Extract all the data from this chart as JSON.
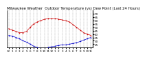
{
  "title": "Milwaukee Weather  Outdoor Temperature (vs) Dew Point (Last 24 Hours)",
  "bg_color": "#ffffff",
  "temp_color": "#cc0000",
  "dew_color": "#0000cc",
  "grid_color": "#999999",
  "ylim": [
    20,
    75
  ],
  "ytick_values": [
    25,
    30,
    35,
    40,
    45,
    50,
    55,
    60,
    65,
    70
  ],
  "ytick_labels": [
    "25",
    "30",
    "35",
    "40",
    "45",
    "50",
    "55",
    "60",
    "65",
    "70"
  ],
  "hours": [
    0,
    1,
    2,
    3,
    4,
    5,
    6,
    7,
    8,
    9,
    10,
    11,
    12,
    13,
    14,
    15,
    16,
    17,
    18,
    19,
    20,
    21,
    22,
    23
  ],
  "temp": [
    48,
    46,
    44,
    42,
    42,
    44,
    50,
    55,
    58,
    60,
    62,
    63,
    63,
    63,
    62,
    61,
    60,
    58,
    54,
    50,
    46,
    42,
    40,
    38
  ],
  "dew": [
    38,
    37,
    35,
    33,
    30,
    28,
    25,
    22,
    20,
    19,
    19,
    20,
    21,
    22,
    23,
    24,
    24,
    25,
    26,
    27,
    29,
    31,
    33,
    35
  ],
  "hour_labels": [
    "12",
    "1",
    "2",
    "3",
    "4",
    "5",
    "6",
    "7",
    "8",
    "9",
    "10",
    "11",
    "12",
    "1",
    "2",
    "3",
    "4",
    "5",
    "6",
    "7",
    "8",
    "9",
    "10",
    "11"
  ],
  "title_fontsize": 3.8,
  "tick_fontsize": 3.0,
  "marker_size": 1.2,
  "linewidth": 0.5,
  "grid_linewidth": 0.3
}
